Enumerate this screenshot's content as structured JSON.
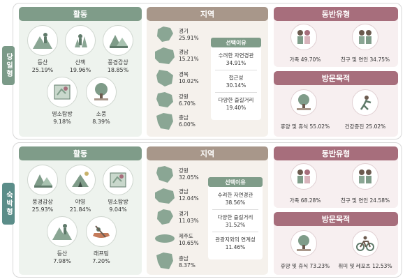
{
  "colors": {
    "activity": "#7f9c89",
    "region": "#a8978a",
    "companion": "#a76e7c",
    "map": "#8aa694"
  },
  "day": {
    "tab": "당일형",
    "activity": {
      "title": "활동",
      "items": [
        {
          "icon": "hiking-icon",
          "name": "등산",
          "value": "25.19%"
        },
        {
          "icon": "walk-icon",
          "name": "산책",
          "value": "19.96%"
        },
        {
          "icon": "scenery-icon",
          "name": "풍경감상",
          "value": "18.85%"
        },
        {
          "icon": "map-tour-icon",
          "name": "명소탐방",
          "value": "9.18%"
        },
        {
          "icon": "picnic-icon",
          "name": "소풍",
          "value": "8.39%"
        }
      ]
    },
    "region": {
      "title": "지역",
      "items": [
        {
          "name": "경기",
          "value": "25.91%"
        },
        {
          "name": "경남",
          "value": "15.21%"
        },
        {
          "name": "경북",
          "value": "10.02%"
        },
        {
          "name": "강원",
          "value": "6.70%"
        },
        {
          "name": "충남",
          "value": "6.00%"
        }
      ],
      "reason_title": "선택이유",
      "reasons": [
        {
          "name": "수려한 자연경관",
          "value": "34.91%"
        },
        {
          "name": "접근성",
          "value": "30.14%"
        },
        {
          "name": "다양한 즐길거리",
          "value": "19.40%"
        }
      ]
    },
    "companion": {
      "title": "동반유형",
      "items": [
        {
          "icon": "family-icon",
          "name": "가족",
          "value": "49.70%"
        },
        {
          "icon": "couple-icon",
          "name": "친구 및 연인",
          "value": "34.75%"
        }
      ]
    },
    "purpose": {
      "title": "방문목적",
      "items": [
        {
          "icon": "rest-icon",
          "name": "휴양 및 휴식",
          "value": "55.02%"
        },
        {
          "icon": "health-icon",
          "name": "건강증진",
          "value": "25.02%"
        }
      ]
    }
  },
  "stay": {
    "tab": "숙박형",
    "activity": {
      "title": "활동",
      "items": [
        {
          "icon": "scenery-icon",
          "name": "풍경감상",
          "value": "25.93%"
        },
        {
          "icon": "camping-icon",
          "name": "야영",
          "value": "21.84%"
        },
        {
          "icon": "map-tour-icon",
          "name": "명소탐방",
          "value": "9.04%"
        },
        {
          "icon": "hiking-icon",
          "name": "등산",
          "value": "7.98%"
        },
        {
          "icon": "rafting-icon",
          "name": "래프팅",
          "value": "7.20%"
        }
      ]
    },
    "region": {
      "title": "지역",
      "items": [
        {
          "name": "강원",
          "value": "32.05%"
        },
        {
          "name": "경남",
          "value": "12.04%"
        },
        {
          "name": "경기",
          "value": "11.03%"
        },
        {
          "name": "제주도",
          "value": "10.65%"
        },
        {
          "name": "충남",
          "value": "8.37%"
        }
      ],
      "reason_title": "선택이유",
      "reasons": [
        {
          "name": "수려한 자연경관",
          "value": "38.56%"
        },
        {
          "name": "다양한 즐길거리",
          "value": "31.52%"
        },
        {
          "name": "관광지와의 연계성",
          "value": "11.46%"
        }
      ]
    },
    "companion": {
      "title": "동반유형",
      "items": [
        {
          "icon": "family-icon",
          "name": "가족",
          "value": "68.28%"
        },
        {
          "icon": "couple-icon",
          "name": "친구 및 연인",
          "value": "24.58%"
        }
      ]
    },
    "purpose": {
      "title": "방문목적",
      "items": [
        {
          "icon": "rest-icon",
          "name": "휴양 및 휴식",
          "value": "73.23%"
        },
        {
          "icon": "cycling-icon",
          "name": "취미 및 레포츠",
          "value": "12.53%"
        }
      ]
    }
  }
}
